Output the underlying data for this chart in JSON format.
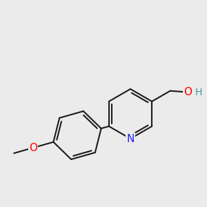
{
  "background_color": "#ebebeb",
  "bond_color": "#1a1a1a",
  "bond_width": 1.5,
  "atom_colors": {
    "N": "#2020ff",
    "O_methoxy": "#ff0000",
    "O_hydroxyl": "#ff0000",
    "H": "#4a9090",
    "C": "#1a1a1a"
  },
  "font_size_atom": 11,
  "font_size_H": 10,
  "figsize": [
    3.0,
    3.0
  ],
  "dpi": 100
}
